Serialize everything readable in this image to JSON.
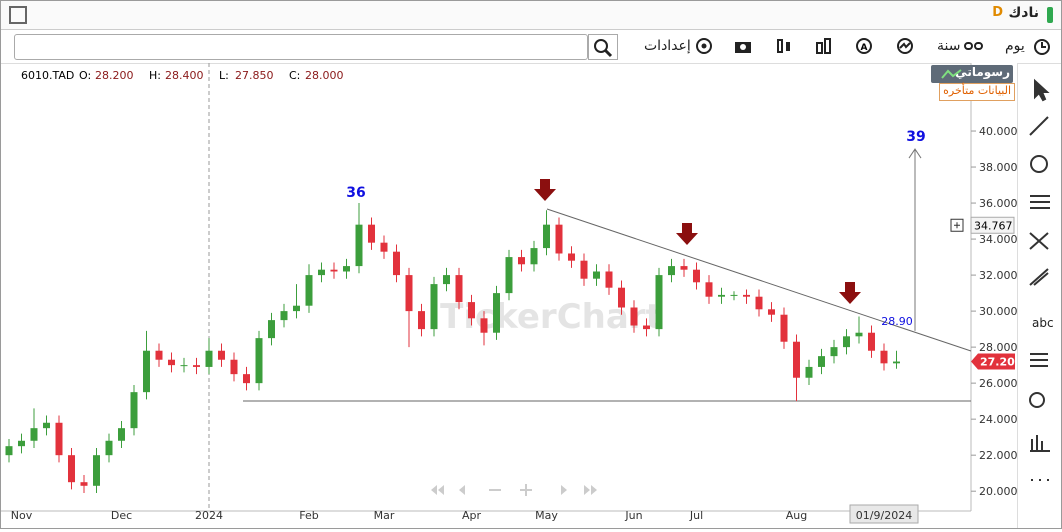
{
  "app": {
    "symbol": "نادك",
    "badge": "D",
    "toolbar": {
      "period": "يوم",
      "range": "سنة",
      "settings": "إعدادات"
    },
    "drawings_button": "رسوماتي",
    "delay_notice": "البيانات متأخره",
    "watermark": "TickerChart",
    "text_tool": "abc"
  },
  "chart_data": {
    "type": "candlestick",
    "ticker": "6010.TAD",
    "readout": [
      {
        "label": "O:",
        "value": "28.200"
      },
      {
        "label": "H:",
        "value": "28.400"
      },
      {
        "label": "L:",
        "value": "27.850"
      },
      {
        "label": "C:",
        "value": "28.000"
      }
    ],
    "up_color": "#3c9e3c",
    "down_color": "#e2323c",
    "categories": [
      null,
      "Nov",
      null,
      null,
      null,
      null,
      null,
      null,
      null,
      "Dec",
      null,
      null,
      null,
      null,
      null,
      null,
      "2024",
      null,
      null,
      null,
      null,
      null,
      null,
      null,
      "Feb",
      null,
      null,
      null,
      null,
      null,
      "Mar",
      null,
      null,
      null,
      null,
      null,
      null,
      "Apr",
      null,
      null,
      null,
      null,
      null,
      "May",
      null,
      null,
      null,
      null,
      null,
      null,
      "Jun",
      null,
      null,
      null,
      null,
      "Jul",
      null,
      null,
      null,
      null,
      null,
      null,
      null,
      "Aug",
      null,
      null,
      null,
      null,
      null,
      null,
      "01/9/2024",
      null
    ],
    "open": [
      22.0,
      22.5,
      22.8,
      23.5,
      23.8,
      22.0,
      20.5,
      20.3,
      22.0,
      22.8,
      23.5,
      25.5,
      27.8,
      27.3,
      27.0,
      27.0,
      26.9,
      27.8,
      27.3,
      26.5,
      26.0,
      28.5,
      29.5,
      30.0,
      30.3,
      32.0,
      32.3,
      32.2,
      32.5,
      34.8,
      33.8,
      33.3,
      32.0,
      30.0,
      29.0,
      31.5,
      32.0,
      30.5,
      29.6,
      28.8,
      31.0,
      33.0,
      32.6,
      33.5,
      34.8,
      33.2,
      32.8,
      31.8,
      32.2,
      31.3,
      30.2,
      29.2,
      29.0,
      32.0,
      32.5,
      32.3,
      31.6,
      30.8,
      30.9,
      30.9,
      30.8,
      30.1,
      29.8,
      28.3,
      26.3,
      26.9,
      27.5,
      28.0,
      28.6,
      28.8,
      27.8,
      27.1
    ],
    "high": [
      22.9,
      23.2,
      24.6,
      24.2,
      24.2,
      22.4,
      20.9,
      22.4,
      23.2,
      23.9,
      25.9,
      28.9,
      28.2,
      27.7,
      27.4,
      27.4,
      28.5,
      28.2,
      27.7,
      26.9,
      28.9,
      29.9,
      30.4,
      31.5,
      32.6,
      32.7,
      32.7,
      32.9,
      36.0,
      35.2,
      34.2,
      33.7,
      32.4,
      30.4,
      31.9,
      32.4,
      32.4,
      30.9,
      30.0,
      31.4,
      33.4,
      33.4,
      33.9,
      35.6,
      35.2,
      33.6,
      33.2,
      32.6,
      32.6,
      31.7,
      30.6,
      29.6,
      32.4,
      32.9,
      32.9,
      32.7,
      32.0,
      31.3,
      31.1,
      31.2,
      31.2,
      30.5,
      30.2,
      28.7,
      27.3,
      27.9,
      28.4,
      29.0,
      29.7,
      29.2,
      28.2,
      27.8
    ],
    "low": [
      21.6,
      22.1,
      22.4,
      23.1,
      21.6,
      20.1,
      19.9,
      19.9,
      21.6,
      22.4,
      23.1,
      25.1,
      26.9,
      26.6,
      26.6,
      26.5,
      26.5,
      26.9,
      26.1,
      25.6,
      25.6,
      28.1,
      29.1,
      29.6,
      29.9,
      31.6,
      31.8,
      31.8,
      32.1,
      33.4,
      32.9,
      31.6,
      28.0,
      28.6,
      28.6,
      31.1,
      30.1,
      29.2,
      28.1,
      28.4,
      30.6,
      32.2,
      32.2,
      33.1,
      32.8,
      32.4,
      31.4,
      31.4,
      30.9,
      29.8,
      28.8,
      28.6,
      28.6,
      31.6,
      31.9,
      31.2,
      30.4,
      30.4,
      30.6,
      30.4,
      29.7,
      29.4,
      27.9,
      25.0,
      25.9,
      26.5,
      27.1,
      27.6,
      28.2,
      27.4,
      26.7,
      26.8
    ],
    "close": [
      22.5,
      22.8,
      23.5,
      23.8,
      22.0,
      20.5,
      20.3,
      22.0,
      22.8,
      23.5,
      25.5,
      27.8,
      27.3,
      27.0,
      27.0,
      26.9,
      27.8,
      27.3,
      26.5,
      26.0,
      28.5,
      29.5,
      30.0,
      30.3,
      32.0,
      32.3,
      32.2,
      32.5,
      34.8,
      33.8,
      33.3,
      32.0,
      30.0,
      29.0,
      31.5,
      32.0,
      30.5,
      29.6,
      28.8,
      31.0,
      33.0,
      32.6,
      33.5,
      34.8,
      33.2,
      32.8,
      31.8,
      32.2,
      31.3,
      30.2,
      29.2,
      29.0,
      32.0,
      32.5,
      32.3,
      31.6,
      30.8,
      30.9,
      30.9,
      30.8,
      30.1,
      29.8,
      28.3,
      26.3,
      26.9,
      27.5,
      28.0,
      28.6,
      28.8,
      27.8,
      27.1,
      27.2
    ],
    "ylim": [
      18.9,
      43.5
    ],
    "yticks": [
      {
        "value": 20,
        "label": "20.000"
      },
      {
        "value": 22,
        "label": "22.000"
      },
      {
        "value": 24,
        "label": "24.000"
      },
      {
        "value": 26,
        "label": "26.000"
      },
      {
        "value": 28,
        "label": "28.000"
      },
      {
        "value": 30,
        "label": "30.000"
      },
      {
        "value": 32,
        "label": "32.000"
      },
      {
        "value": 34,
        "label": "34.000"
      },
      {
        "value": 36,
        "label": "36.000"
      },
      {
        "value": 38,
        "label": "38.000"
      },
      {
        "value": 40,
        "label": "40.000"
      }
    ],
    "crosshair_price": {
      "value": 34.767,
      "label": "34.767"
    },
    "last_price": {
      "value": 27.2,
      "label": "27.200"
    },
    "annotations": [
      {
        "value": 36,
        "color": "#1010e0"
      },
      {
        "value": 39,
        "color": "#1010e0"
      },
      {
        "value": 28.9,
        "label": "28.90",
        "color": "#1010e0"
      }
    ]
  }
}
